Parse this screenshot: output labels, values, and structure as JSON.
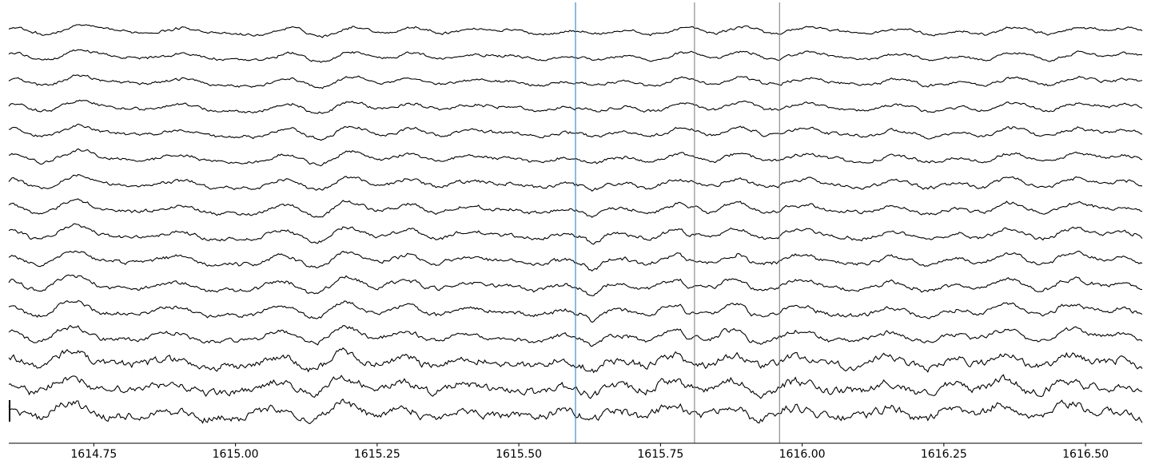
{
  "chart_data": {
    "type": "line",
    "title": "",
    "xlabel": "",
    "ylabel": "",
    "xlim": [
      1614.6,
      1616.6
    ],
    "xticks": [
      "1614.75",
      "1615.00",
      "1615.25",
      "1615.50",
      "1615.75",
      "1616.00",
      "1616.25",
      "1616.50"
    ],
    "xtick_values": [
      1614.75,
      1615.0,
      1615.25,
      1615.5,
      1615.75,
      1616.0,
      1616.25,
      1616.5
    ],
    "n_channels": 16,
    "grid": false,
    "legend": "none",
    "trace_color": "#000000",
    "event_markers": [
      {
        "x": 1615.6,
        "color": "#1f77b4"
      },
      {
        "x": 1615.81,
        "color": "#777777"
      },
      {
        "x": 1615.96,
        "color": "#777777"
      }
    ],
    "deflection_events": [
      {
        "x": 1615.63,
        "depth": 0.5,
        "width": 0.015
      },
      {
        "x": 1615.8,
        "depth": 0.4,
        "width": 0.012
      },
      {
        "x": 1615.91,
        "depth": 0.3,
        "width": 0.012
      }
    ],
    "scale_bar": true
  }
}
